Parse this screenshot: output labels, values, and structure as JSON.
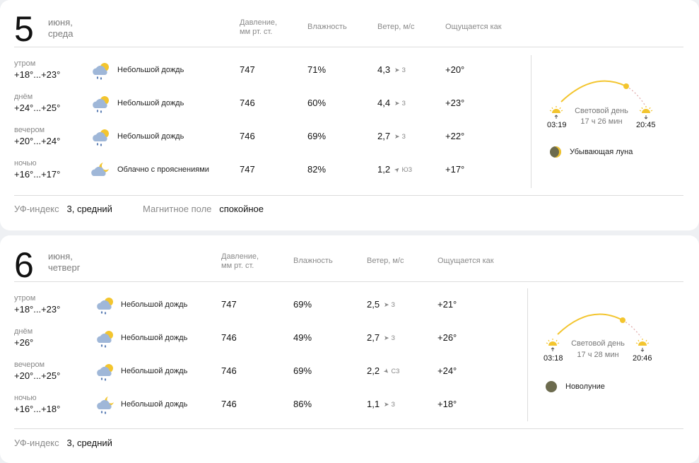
{
  "headers": {
    "pressure_line1": "Давление,",
    "pressure_line2": "мм рт. ст.",
    "humidity": "Влажность",
    "wind": "Ветер, м/с",
    "feels": "Ощущается как"
  },
  "days": [
    {
      "day": "5",
      "month": "июня,",
      "weekday": "среда",
      "rows": [
        {
          "part": "утром",
          "temp": "+18°...+23°",
          "icon": "light-rain-icon",
          "condition": "Небольшой дождь",
          "pressure": "747",
          "humidity": "71%",
          "wind": "4,3",
          "wind_arrow": "➤",
          "wind_dir": "З",
          "feels": "+20°"
        },
        {
          "part": "днём",
          "temp": "+24°...+25°",
          "icon": "light-rain-icon",
          "condition": "Небольшой дождь",
          "pressure": "746",
          "humidity": "60%",
          "wind": "4,4",
          "wind_arrow": "➤",
          "wind_dir": "З",
          "feels": "+23°"
        },
        {
          "part": "вечером",
          "temp": "+20°...+24°",
          "icon": "light-rain-icon",
          "condition": "Небольшой дождь",
          "pressure": "746",
          "humidity": "69%",
          "wind": "2,7",
          "wind_arrow": "➤",
          "wind_dir": "З",
          "feels": "+22°"
        },
        {
          "part": "ночью",
          "temp": "+16°...+17°",
          "icon": "cloudy-night-icon",
          "condition": "Облачно с прояснениями",
          "pressure": "747",
          "humidity": "82%",
          "wind": "1,2",
          "wind_arrow": "➤",
          "wind_dir": "ЮЗ",
          "feels": "+17°"
        }
      ],
      "sun": {
        "label": "Световой день",
        "duration": "17 ч 26 мин",
        "sunrise": "03:19",
        "sunset": "20:45"
      },
      "moon": {
        "phase": "Убывающая луна"
      },
      "footer": {
        "uv_label": "УФ-индекс",
        "uv_value": "3, средний",
        "mag_label": "Магнитное поле",
        "mag_value": "спокойное"
      }
    },
    {
      "day": "6",
      "month": "июня,",
      "weekday": "четверг",
      "rows": [
        {
          "part": "утром",
          "temp": "+18°...+23°",
          "icon": "light-rain-icon",
          "condition": "Небольшой дождь",
          "pressure": "747",
          "humidity": "69%",
          "wind": "2,5",
          "wind_arrow": "➤",
          "wind_dir": "З",
          "feels": "+21°"
        },
        {
          "part": "днём",
          "temp": "+26°",
          "icon": "light-rain-icon",
          "condition": "Небольшой дождь",
          "pressure": "746",
          "humidity": "49%",
          "wind": "2,7",
          "wind_arrow": "➤",
          "wind_dir": "З",
          "feels": "+26°"
        },
        {
          "part": "вечером",
          "temp": "+20°...+25°",
          "icon": "light-rain-icon",
          "condition": "Небольшой дождь",
          "pressure": "746",
          "humidity": "69%",
          "wind": "2,2",
          "wind_arrow": "➤",
          "wind_dir": "СЗ",
          "feels": "+24°"
        },
        {
          "part": "ночью",
          "temp": "+16°...+18°",
          "icon": "rain-night-icon",
          "condition": "Небольшой дождь",
          "pressure": "746",
          "humidity": "86%",
          "wind": "1,1",
          "wind_arrow": "➤",
          "wind_dir": "З",
          "feels": "+18°"
        }
      ],
      "sun": {
        "label": "Световой день",
        "duration": "17 ч 28 мин",
        "sunrise": "03:18",
        "sunset": "20:46"
      },
      "moon": {
        "phase": "Новолуние"
      },
      "footer": {
        "uv_label": "УФ-индекс",
        "uv_value": "3, средний"
      }
    }
  ],
  "colors": {
    "sun": "#f3c52e",
    "rain_cloud": "#9fb7d8",
    "moon_dark": "#6c6b4e",
    "divider": "#dcdcdc"
  }
}
